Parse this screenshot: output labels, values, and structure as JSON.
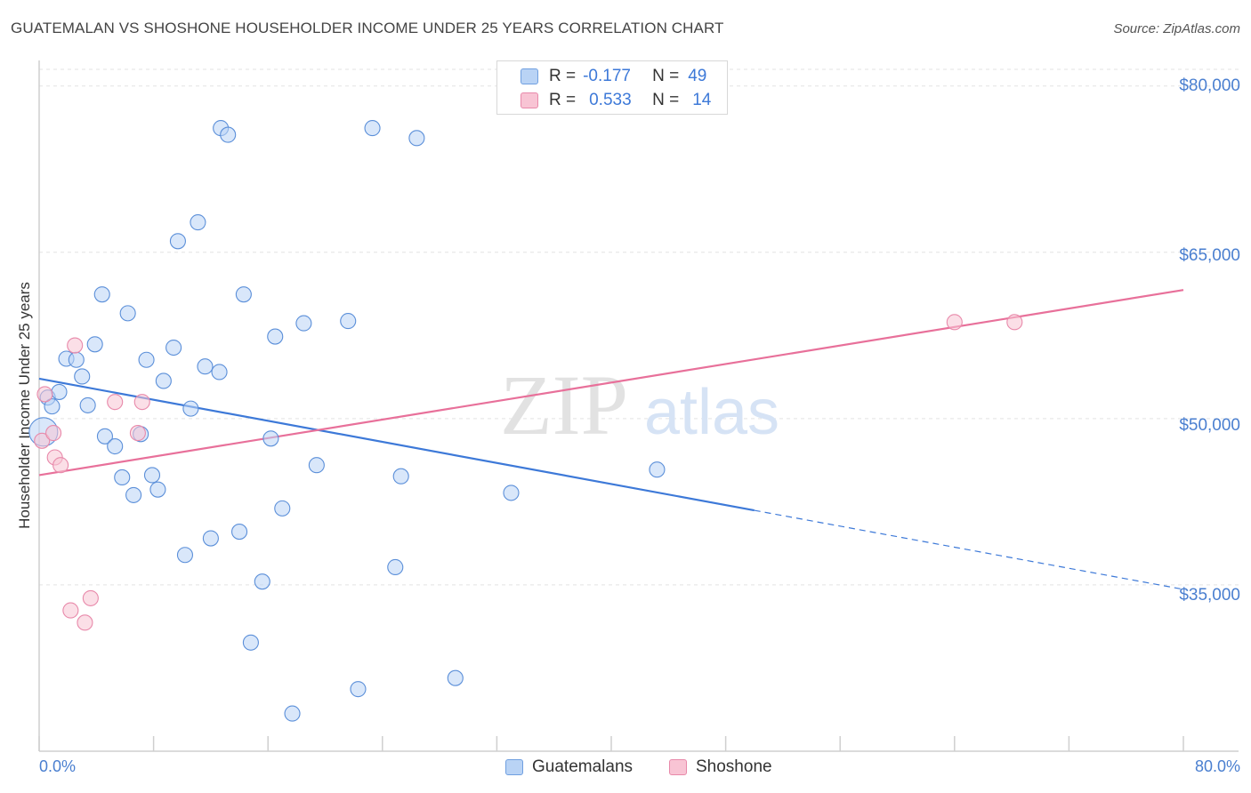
{
  "title": "GUATEMALAN VS SHOSHONE HOUSEHOLDER INCOME UNDER 25 YEARS CORRELATION CHART",
  "source": "Source: ZipAtlas.com",
  "watermark": {
    "zip": "ZIP",
    "atlas": "atlas"
  },
  "legend": {
    "r_label": "R =",
    "n_label": "N =",
    "rows": [
      {
        "r": "-0.177",
        "n": "49"
      },
      {
        "r": "0.533",
        "n": "14"
      }
    ]
  },
  "bottom_legend": [
    "Guatemalans",
    "Shoshone"
  ],
  "colors": {
    "blue": "#3d79d8",
    "pink": "#e8709a",
    "blue_fill": "#b9d3f5",
    "pink_fill": "#f8c4d4"
  },
  "chart_data": {
    "type": "scatter",
    "title": "GUATEMALAN VS SHOSHONE HOUSEHOLDER INCOME UNDER 25 YEARS CORRELATION CHART",
    "xlabel": "",
    "ylabel": "Householder Income Under 25 years",
    "xlim": [
      0,
      80
    ],
    "ylim": [
      20000,
      81500
    ],
    "x_tick_labels": [
      "0.0%",
      "80.0%"
    ],
    "y_ticks": [
      35000,
      50000,
      65000,
      80000
    ],
    "y_tick_labels": [
      "$35,000",
      "$50,000",
      "$65,000",
      "$80,000"
    ],
    "series": [
      {
        "name": "Guatemalans",
        "r": -0.177,
        "n": 49,
        "points": [
          [
            0.3,
            48800
          ],
          [
            0.6,
            51900
          ],
          [
            0.9,
            51100
          ],
          [
            1.4,
            52400
          ],
          [
            1.9,
            55400
          ],
          [
            2.6,
            55300
          ],
          [
            3.0,
            53800
          ],
          [
            3.4,
            51200
          ],
          [
            3.9,
            56700
          ],
          [
            4.4,
            61200
          ],
          [
            4.6,
            48400
          ],
          [
            5.3,
            47500
          ],
          [
            5.8,
            44700
          ],
          [
            6.2,
            59500
          ],
          [
            6.6,
            43100
          ],
          [
            7.1,
            48600
          ],
          [
            7.5,
            55300
          ],
          [
            7.9,
            44900
          ],
          [
            8.3,
            43600
          ],
          [
            8.7,
            53400
          ],
          [
            9.4,
            56400
          ],
          [
            9.7,
            66000
          ],
          [
            10.2,
            37700
          ],
          [
            10.6,
            50900
          ],
          [
            11.1,
            67700
          ],
          [
            11.6,
            54700
          ],
          [
            12.0,
            39200
          ],
          [
            12.6,
            54200
          ],
          [
            12.7,
            76200
          ],
          [
            13.2,
            75600
          ],
          [
            14.0,
            39800
          ],
          [
            14.3,
            61200
          ],
          [
            14.8,
            29800
          ],
          [
            15.6,
            35300
          ],
          [
            16.2,
            48200
          ],
          [
            16.5,
            57400
          ],
          [
            17.0,
            41900
          ],
          [
            17.7,
            23400
          ],
          [
            18.5,
            58600
          ],
          [
            19.4,
            45800
          ],
          [
            21.6,
            58800
          ],
          [
            22.3,
            25600
          ],
          [
            23.3,
            76200
          ],
          [
            24.9,
            36600
          ],
          [
            25.3,
            44800
          ],
          [
            26.4,
            75300
          ],
          [
            29.1,
            26600
          ],
          [
            33.0,
            43300
          ],
          [
            43.2,
            45400
          ]
        ]
      },
      {
        "name": "Shoshone",
        "r": 0.533,
        "n": 14,
        "points": [
          [
            0.2,
            48000
          ],
          [
            0.4,
            52200
          ],
          [
            1.0,
            48700
          ],
          [
            1.1,
            46500
          ],
          [
            1.5,
            45800
          ],
          [
            2.2,
            32700
          ],
          [
            2.5,
            56600
          ],
          [
            3.2,
            31600
          ],
          [
            3.6,
            33800
          ],
          [
            5.3,
            51500
          ],
          [
            6.9,
            48700
          ],
          [
            7.2,
            51500
          ],
          [
            64.0,
            58700
          ],
          [
            68.2,
            58700
          ]
        ]
      }
    ],
    "trendlines": [
      {
        "series": "Guatemalans",
        "x0": 0,
        "y0": 53600,
        "x_solid_end": 50,
        "x1": 80,
        "y1": 34600,
        "style": "solid then dashed"
      },
      {
        "series": "Shoshone",
        "x0": 0,
        "y0": 44900,
        "x1": 80,
        "y1": 61600,
        "style": "solid"
      }
    ]
  }
}
